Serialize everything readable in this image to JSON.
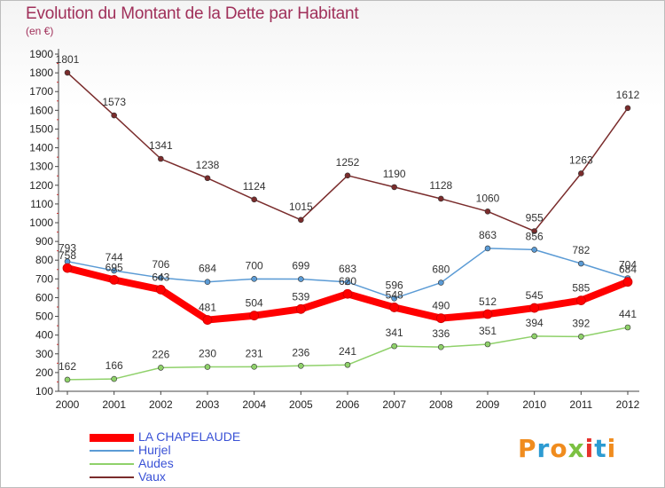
{
  "title": "Evolution du Montant de la Dette par Habitant",
  "subtitle": "(en €)",
  "logo_text": "Proxiti",
  "chart_data": {
    "type": "line",
    "x": [
      "2000",
      "2001",
      "2002",
      "2003",
      "2004",
      "2005",
      "2006",
      "2007",
      "2008",
      "2009",
      "2010",
      "2011",
      "2012"
    ],
    "y_ticks": [
      100,
      200,
      300,
      400,
      500,
      600,
      700,
      800,
      900,
      1000,
      1100,
      1200,
      1300,
      1400,
      1500,
      1600,
      1700,
      1800,
      1900
    ],
    "ylim": [
      100,
      1900
    ],
    "grid": false,
    "legend_position": "bottom-left",
    "series": [
      {
        "name": "LA CHAPELAUDE",
        "color": "#ff0000",
        "values": [
          758,
          695,
          643,
          481,
          504,
          539,
          620,
          548,
          490,
          512,
          545,
          585,
          684
        ],
        "labels": [
          "758",
          "695",
          "643",
          "481",
          "504",
          "539",
          "620",
          "548",
          "490",
          "512",
          "545",
          "585",
          "684"
        ]
      },
      {
        "name": "Hurjel",
        "color": "#5b9bd5",
        "values": [
          793,
          744,
          706,
          684,
          700,
          699,
          683,
          596,
          680,
          863,
          856,
          782,
          704
        ],
        "labels": [
          "793",
          "744",
          "706",
          "684",
          "700",
          "699",
          "683",
          "596",
          "680",
          "863",
          "856",
          "782",
          "704"
        ]
      },
      {
        "name": "Audes",
        "color": "#8fd16a",
        "values": [
          162,
          166,
          226,
          230,
          231,
          236,
          241,
          341,
          336,
          351,
          394,
          392,
          441
        ],
        "labels": [
          "162",
          "166",
          "226",
          "230",
          "231",
          "236",
          "241",
          "341",
          "336",
          "351",
          "394",
          "392",
          "441"
        ]
      },
      {
        "name": "Vaux",
        "color": "#7a2c2c",
        "values": [
          1801,
          1573,
          1341,
          1238,
          1124,
          1015,
          1252,
          1190,
          1128,
          1060,
          955,
          1263,
          1612
        ],
        "labels": [
          "1801",
          "1573",
          "1341",
          "1238",
          "1124",
          "1015",
          "1252",
          "1190",
          "1128",
          "1060",
          "955",
          "1263",
          "1612"
        ]
      }
    ]
  }
}
